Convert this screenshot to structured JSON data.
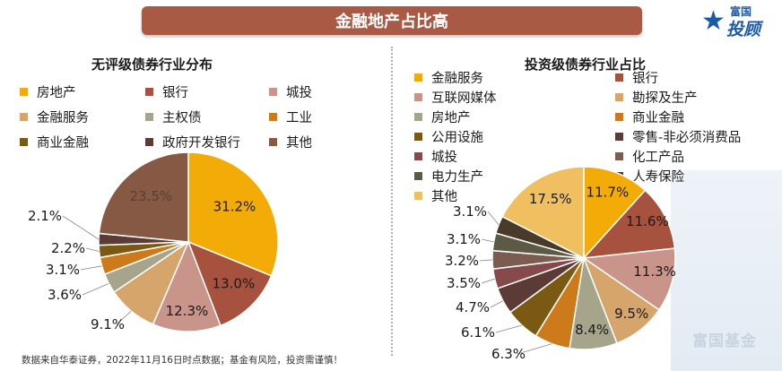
{
  "banner_title": "金融地产占比高",
  "logo": {
    "top_text": "富国",
    "main_text": "投顾",
    "star": "★"
  },
  "watermark": "富国基金",
  "footnote": "数据来自华泰证券，2022年11月16日时点数据；基金有风险，投资需谨慎！",
  "chart_data": [
    {
      "type": "pie",
      "title": "无评级债券行业分布",
      "categories": [
        "房地产",
        "银行",
        "城投",
        "金融服务",
        "主权债",
        "工业",
        "商业金融",
        "政府开发银行",
        "其他"
      ],
      "values": [
        31.2,
        13.0,
        12.3,
        9.1,
        3.6,
        3.1,
        2.2,
        2.1,
        23.5
      ],
      "labels": [
        "31.2%",
        "13.0%",
        "12.3%",
        "9.1%",
        "3.6%",
        "3.1%",
        "2.2%",
        "2.1%",
        "23.5%"
      ],
      "colors": [
        "#f3ac07",
        "#a7523e",
        "#c9958a",
        "#d6a56c",
        "#a6a48b",
        "#cc7a1a",
        "#7a5a12",
        "#5c3a36",
        "#865945"
      ]
    },
    {
      "type": "pie",
      "title": "投资级债券行业占比",
      "categories": [
        "金融服务",
        "银行",
        "互联网媒体",
        "勘探及生产",
        "房地产",
        "商业金融",
        "公用设施",
        "零售-非必须消费品",
        "城投",
        "化工产品",
        "电力生产",
        "人寿保险",
        "其他"
      ],
      "values": [
        11.7,
        11.6,
        11.3,
        9.5,
        8.4,
        6.3,
        6.1,
        4.7,
        3.5,
        3.2,
        3.1,
        3.1,
        17.5
      ],
      "labels": [
        "11.7%",
        "11.6%",
        "11.3%",
        "9.5%",
        "8.4%",
        "6.3%",
        "6.1%",
        "4.7%",
        "3.5%",
        "3.2%",
        "3.1%",
        "3.1%",
        "17.5%"
      ],
      "colors": [
        "#f3ac07",
        "#a7523e",
        "#c9958a",
        "#d6a56c",
        "#a6a48b",
        "#cc7a1a",
        "#7a5a12",
        "#5c3a36",
        "#864a4a",
        "#7d5c50",
        "#5c5a44",
        "#4a3a2a",
        "#f0c060"
      ]
    }
  ]
}
